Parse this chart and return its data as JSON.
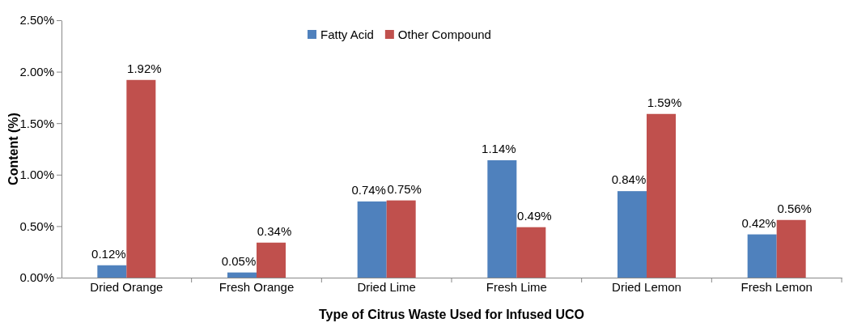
{
  "chart_data": {
    "type": "bar",
    "xlabel": "Type of Citrus Waste Used for Infused UCO",
    "ylabel": "Content (%)",
    "categories": [
      "Dried Orange",
      "Fresh Orange",
      "Dried Lime",
      "Fresh Lime",
      "Dried Lemon",
      "Fresh Lemon"
    ],
    "series": [
      {
        "name": "Fatty Acid",
        "color": "#4f81bd",
        "values": [
          0.12,
          0.05,
          0.74,
          1.14,
          0.84,
          0.42
        ],
        "value_labels": [
          "0.12%",
          "0.05%",
          "0.74%",
          "1.14%",
          "0.84%",
          "0.42%"
        ]
      },
      {
        "name": "Other Compound",
        "color": "#c0504d",
        "values": [
          1.92,
          0.34,
          0.75,
          0.49,
          1.59,
          0.56
        ],
        "value_labels": [
          "1.92%",
          "0.34%",
          "0.75%",
          "0.49%",
          "1.59%",
          "0.56%"
        ]
      }
    ],
    "ylim": [
      0,
      2.5
    ],
    "yticks": [
      {
        "value": 0,
        "label": "0.00%"
      },
      {
        "value": 0.5,
        "label": "0.50%"
      },
      {
        "value": 1,
        "label": "1.00%"
      },
      {
        "value": 1.5,
        "label": "1.50%"
      },
      {
        "value": 2,
        "label": "2.00%"
      },
      {
        "value": 2.5,
        "label": "2.50%"
      }
    ],
    "legend": "top"
  }
}
